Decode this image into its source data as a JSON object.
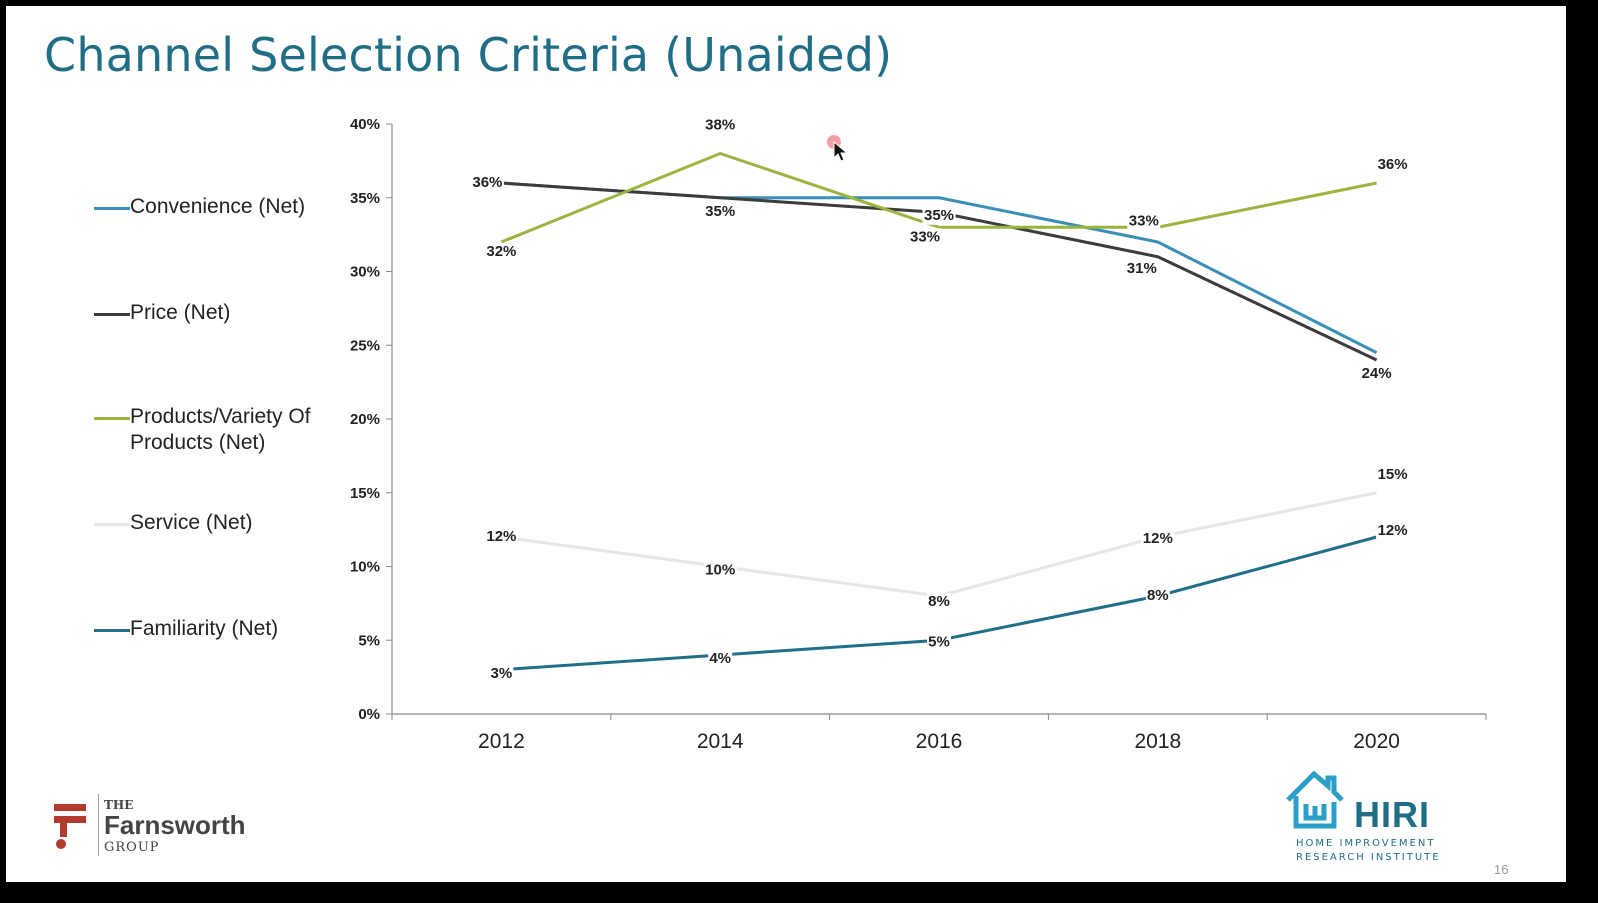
{
  "title": "Channel Selection Criteria (Unaided)",
  "page_number": "16",
  "logos": {
    "left": {
      "the": "THE",
      "name": "Farnsworth",
      "group": "GROUP"
    },
    "right": {
      "name": "HIRI",
      "sub1": "HOME IMPROVEMENT",
      "sub2": "RESEARCH INSTITUTE"
    }
  },
  "chart_data": {
    "type": "line",
    "title": "Channel Selection Criteria (Unaided)",
    "xlabel": "",
    "ylabel": "",
    "categories": [
      "2012",
      "2014",
      "2016",
      "2018",
      "2020"
    ],
    "ylim": [
      0,
      40
    ],
    "yticks": [
      "0%",
      "5%",
      "10%",
      "15%",
      "20%",
      "25%",
      "30%",
      "35%",
      "40%"
    ],
    "legend_position": "left",
    "series": [
      {
        "name": "Convenience (Net)",
        "color": "#3a8fb7",
        "values": [
          36,
          35,
          35,
          32,
          24.5
        ],
        "labels": [
          "36%",
          "35%",
          "35%",
          "",
          ""
        ]
      },
      {
        "name": "Price (Net)",
        "color": "#3c3c3c",
        "values": [
          36,
          35,
          34,
          31,
          24
        ],
        "labels": [
          "",
          "",
          "",
          "31%",
          "24%"
        ]
      },
      {
        "name": "Products/Variety Of Products (Net)",
        "color": "#9bb33f",
        "values": [
          32,
          38,
          33,
          33,
          36
        ],
        "labels": [
          "32%",
          "38%",
          "33%",
          "33%",
          "36%"
        ]
      },
      {
        "name": "Service (Net)",
        "color": "#e6e6e6",
        "values": [
          12,
          10,
          8,
          12,
          15
        ],
        "labels": [
          "12%",
          "10%",
          "8%",
          "12%",
          "15%"
        ]
      },
      {
        "name": "Familiarity (Net)",
        "color": "#1e6f87",
        "values": [
          3,
          4,
          5,
          8,
          12
        ],
        "labels": [
          "3%",
          "4%",
          "5%",
          "8%",
          "12%"
        ]
      }
    ]
  }
}
